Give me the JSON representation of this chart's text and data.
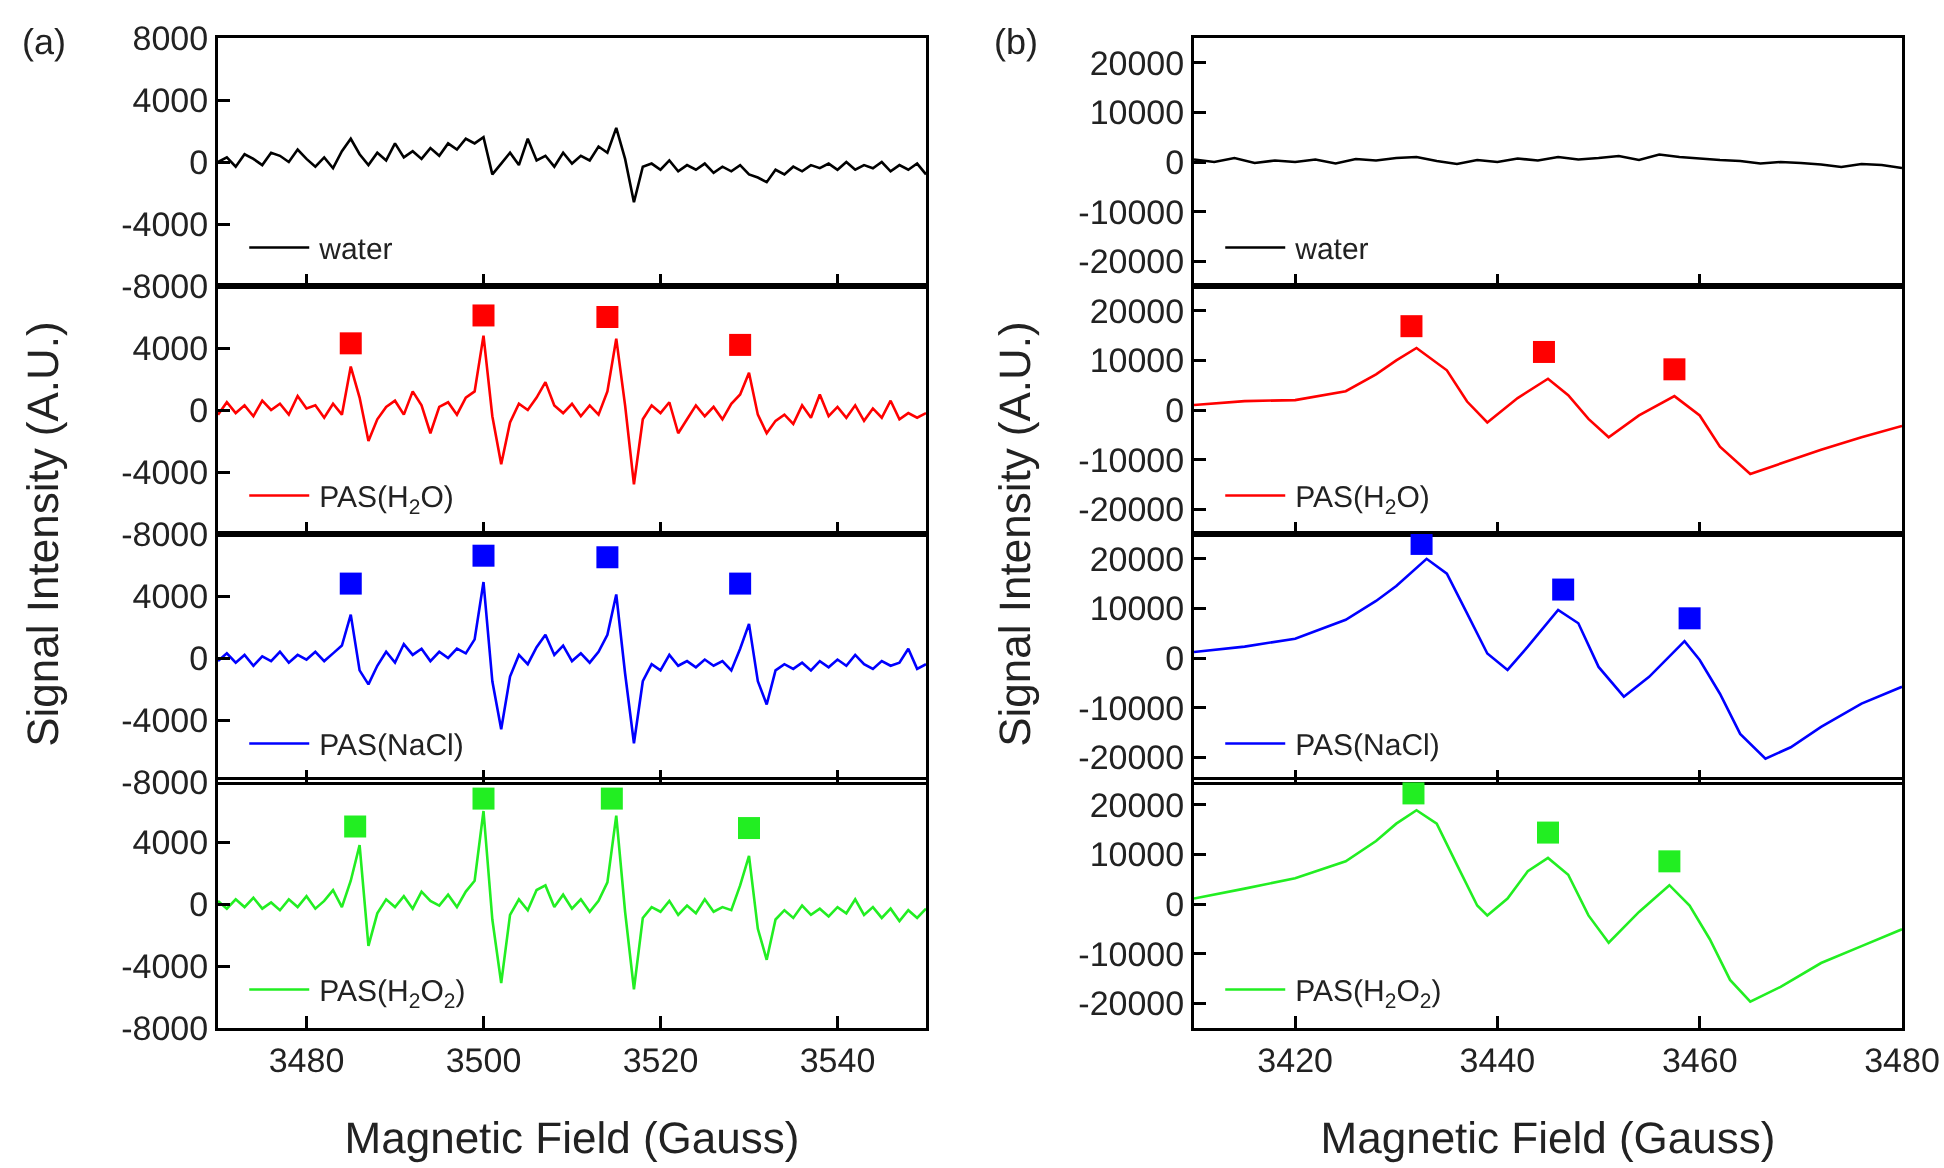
{
  "chart_data": [
    {
      "type": "line",
      "annotations": [
        "(a)"
      ],
      "ylabel": "Signal Intensity (A.U.)",
      "xlim": [
        3470,
        3550
      ],
      "xticks": [
        3480,
        3500,
        3520,
        3540
      ],
      "ylim": [
        -8000,
        8000
      ],
      "yticks": [
        8000,
        4000,
        0,
        -4000,
        -8000
      ],
      "tick_labels": "y",
      "legend": "bottom left",
      "x": [
        3470,
        3471,
        3472,
        3473,
        3474,
        3475,
        3476,
        3477,
        3478,
        3479,
        3480,
        3481,
        3482,
        3483,
        3484,
        3485,
        3486,
        3487,
        3488,
        3489,
        3490,
        3491,
        3492,
        3493,
        3494,
        3495,
        3496,
        3497,
        3498,
        3499,
        3500,
        3501,
        3502,
        3503,
        3504,
        3505,
        3506,
        3507,
        3508,
        3509,
        3510,
        3511,
        3512,
        3513,
        3514,
        3515,
        3516,
        3517,
        3518,
        3519,
        3520,
        3521,
        3522,
        3523,
        3524,
        3525,
        3526,
        3527,
        3528,
        3529,
        3530,
        3531,
        3532,
        3533,
        3534,
        3535,
        3536,
        3537,
        3538,
        3539,
        3540,
        3541,
        3542,
        3543,
        3544,
        3545,
        3546,
        3547,
        3548,
        3549,
        3550
      ],
      "series": [
        {
          "name": "water",
          "color": "#000000",
          "values": [
            0,
            300,
            -300,
            500,
            200,
            -200,
            600,
            400,
            0,
            800,
            200,
            -300,
            300,
            -400,
            700,
            1500,
            500,
            -200,
            600,
            100,
            1200,
            300,
            700,
            200,
            900,
            400,
            1200,
            800,
            1500,
            1200,
            1600,
            -800,
            -100,
            600,
            -200,
            1500,
            100,
            400,
            -300,
            600,
            -100,
            400,
            100,
            1000,
            600,
            2200,
            200,
            -2600,
            -300,
            -100,
            -500,
            100,
            -600,
            -200,
            -500,
            -100,
            -700,
            -300,
            -600,
            -200,
            -800,
            -1000,
            -1300,
            -500,
            -800,
            -300,
            -600,
            -200,
            -400,
            -100,
            -500,
            0,
            -500,
            -200,
            -400,
            0,
            -600,
            -200,
            -500,
            -100,
            -800
          ]
        }
      ]
    },
    {
      "type": "line",
      "xlim": [
        3470,
        3550
      ],
      "xticks": [
        3480,
        3500,
        3520,
        3540
      ],
      "ylim": [
        -8000,
        8000
      ],
      "yticks": [
        4000,
        0,
        -4000,
        -8000
      ],
      "tick_labels": "y",
      "legend": "bottom left",
      "x": [
        3470,
        3471,
        3472,
        3473,
        3474,
        3475,
        3476,
        3477,
        3478,
        3479,
        3480,
        3481,
        3482,
        3483,
        3484,
        3485,
        3486,
        3487,
        3488,
        3489,
        3490,
        3491,
        3492,
        3493,
        3494,
        3495,
        3496,
        3497,
        3498,
        3499,
        3500,
        3501,
        3502,
        3503,
        3504,
        3505,
        3506,
        3507,
        3508,
        3509,
        3510,
        3511,
        3512,
        3513,
        3514,
        3515,
        3516,
        3517,
        3518,
        3519,
        3520,
        3521,
        3522,
        3523,
        3524,
        3525,
        3526,
        3527,
        3528,
        3529,
        3530,
        3531,
        3532,
        3533,
        3534,
        3535,
        3536,
        3537,
        3538,
        3539,
        3540,
        3541,
        3542,
        3543,
        3544,
        3545,
        3546,
        3547,
        3548,
        3549,
        3550
      ],
      "series": [
        {
          "name": "PAS(H$_{2}$O)",
          "color": "#ff0000",
          "values": [
            -300,
            500,
            -200,
            300,
            -400,
            600,
            0,
            400,
            -300,
            900,
            100,
            300,
            -500,
            400,
            -300,
            2800,
            800,
            -2000,
            -600,
            200,
            600,
            -300,
            1200,
            300,
            -1500,
            200,
            500,
            -300,
            800,
            1200,
            4800,
            -400,
            -3500,
            -800,
            400,
            0,
            800,
            1800,
            300,
            -200,
            400,
            -400,
            300,
            -300,
            1200,
            4600,
            300,
            -4800,
            -600,
            300,
            -200,
            500,
            -1500,
            -600,
            300,
            -400,
            200,
            -600,
            400,
            1000,
            2400,
            -300,
            -1500,
            -700,
            -300,
            -900,
            300,
            -500,
            1000,
            -400,
            200,
            -500,
            300,
            -700,
            100,
            -500,
            600,
            -600,
            -200,
            -500,
            -200
          ]
        },
        {
          "type": "scatter",
          "marker": "square",
          "color": "#ff0000",
          "x": [
            3485,
            3500,
            3514,
            3529
          ],
          "values": [
            4300,
            6100,
            6000,
            4200
          ]
        }
      ]
    },
    {
      "type": "line",
      "xlim": [
        3470,
        3550
      ],
      "xticks": [
        3480,
        3500,
        3520,
        3540
      ],
      "ylim": [
        -8000,
        8000
      ],
      "yticks": [
        4000,
        0,
        -4000,
        -8000
      ],
      "tick_labels": "y",
      "legend": "bottom left",
      "x": [
        3470,
        3471,
        3472,
        3473,
        3474,
        3475,
        3476,
        3477,
        3478,
        3479,
        3480,
        3481,
        3482,
        3483,
        3484,
        3485,
        3486,
        3487,
        3488,
        3489,
        3490,
        3491,
        3492,
        3493,
        3494,
        3495,
        3496,
        3497,
        3498,
        3499,
        3500,
        3501,
        3502,
        3503,
        3504,
        3505,
        3506,
        3507,
        3508,
        3509,
        3510,
        3511,
        3512,
        3513,
        3514,
        3515,
        3516,
        3517,
        3518,
        3519,
        3520,
        3521,
        3522,
        3523,
        3524,
        3525,
        3526,
        3527,
        3528,
        3529,
        3530,
        3531,
        3532,
        3533,
        3534,
        3535,
        3536,
        3537,
        3538,
        3539,
        3540,
        3541,
        3542,
        3543,
        3544,
        3545,
        3546,
        3547,
        3548,
        3549,
        3550
      ],
      "series": [
        {
          "name": "PAS(NaCl)",
          "color": "#0000ff",
          "values": [
            -200,
            300,
            -300,
            200,
            -500,
            100,
            -200,
            400,
            -300,
            200,
            -100,
            400,
            -200,
            300,
            800,
            2800,
            -800,
            -1700,
            -500,
            400,
            -300,
            900,
            200,
            600,
            -200,
            400,
            0,
            600,
            300,
            1200,
            4900,
            -1500,
            -4600,
            -1200,
            200,
            -400,
            700,
            1500,
            200,
            800,
            -200,
            300,
            -300,
            400,
            1500,
            4100,
            -1000,
            -5500,
            -1500,
            -400,
            -800,
            200,
            -500,
            -200,
            -600,
            -100,
            -500,
            -200,
            -800,
            600,
            2200,
            -1500,
            -3000,
            -800,
            -400,
            -700,
            -300,
            -800,
            -200,
            -600,
            -100,
            -500,
            200,
            -400,
            -700,
            -200,
            -500,
            -300,
            600,
            -700,
            -400
          ]
        },
        {
          "type": "scatter",
          "marker": "square",
          "color": "#0000ff",
          "x": [
            3485,
            3500,
            3514,
            3529
          ],
          "values": [
            4800,
            6600,
            6500,
            4800
          ]
        }
      ]
    },
    {
      "type": "line",
      "xlabel": "Magnetic Field (Gauss)",
      "xlim": [
        3470,
        3550
      ],
      "xticks": [
        3480,
        3500,
        3520,
        3540
      ],
      "ylim": [
        -8000,
        8000
      ],
      "yticks": [
        4000,
        0,
        -4000,
        -8000
      ],
      "legend": "bottom left",
      "x": [
        3470,
        3471,
        3472,
        3473,
        3474,
        3475,
        3476,
        3477,
        3478,
        3479,
        3480,
        3481,
        3482,
        3483,
        3484,
        3485,
        3486,
        3487,
        3488,
        3489,
        3490,
        3491,
        3492,
        3493,
        3494,
        3495,
        3496,
        3497,
        3498,
        3499,
        3500,
        3501,
        3502,
        3503,
        3504,
        3505,
        3506,
        3507,
        3508,
        3509,
        3510,
        3511,
        3512,
        3513,
        3514,
        3515,
        3516,
        3517,
        3518,
        3519,
        3520,
        3521,
        3522,
        3523,
        3524,
        3525,
        3526,
        3527,
        3528,
        3529,
        3530,
        3531,
        3532,
        3533,
        3534,
        3535,
        3536,
        3537,
        3538,
        3539,
        3540,
        3541,
        3542,
        3543,
        3544,
        3545,
        3546,
        3547,
        3548,
        3549,
        3550
      ],
      "series": [
        {
          "name": "PAS(H$_{2}$O$_{2}$)",
          "color": "#22ee22",
          "values": [
            200,
            -300,
            300,
            -200,
            400,
            -300,
            100,
            -400,
            300,
            -200,
            500,
            -300,
            200,
            900,
            -200,
            1500,
            3800,
            -2700,
            -600,
            300,
            -200,
            500,
            -300,
            800,
            200,
            -100,
            600,
            -200,
            800,
            1500,
            6000,
            -1000,
            -5100,
            -700,
            300,
            -400,
            900,
            1200,
            -200,
            600,
            -300,
            300,
            -500,
            200,
            1400,
            5700,
            -500,
            -5500,
            -900,
            -200,
            -500,
            200,
            -700,
            -100,
            -600,
            300,
            -500,
            -200,
            -400,
            1200,
            3100,
            -1600,
            -3600,
            -1000,
            -400,
            -900,
            -100,
            -700,
            -300,
            -800,
            -200,
            -600,
            300,
            -700,
            -200,
            -900,
            -300,
            -1100,
            -400,
            -900,
            -300
          ]
        },
        {
          "type": "scatter",
          "marker": "square",
          "color": "#22ee22",
          "x": [
            3485.5,
            3500,
            3514.5,
            3530
          ],
          "values": [
            5000,
            6800,
            6800,
            4900
          ]
        }
      ]
    },
    {
      "type": "line",
      "annotations": [
        "(b)"
      ],
      "ylabel": "Signal Intensity (A.U.)",
      "xlim": [
        3410,
        3480
      ],
      "xticks": [
        3420,
        3440,
        3460,
        3480
      ],
      "ylim": [
        -25000,
        25000
      ],
      "yticks": [
        20000,
        10000,
        0,
        -10000,
        -20000
      ],
      "tick_labels": "y",
      "legend": "bottom left",
      "series": [
        {
          "name": "water",
          "color": "#000000",
          "x": [
            3410,
            3412,
            3414,
            3416,
            3418,
            3420,
            3422,
            3424,
            3426,
            3428,
            3430,
            3432,
            3434,
            3436,
            3438,
            3440,
            3442,
            3444,
            3446,
            3448,
            3450,
            3452,
            3454,
            3456,
            3458,
            3460,
            3462,
            3464,
            3466,
            3468,
            3470,
            3472,
            3474,
            3476,
            3478,
            3480
          ],
          "values": [
            500,
            0,
            800,
            -200,
            300,
            0,
            500,
            -300,
            600,
            300,
            800,
            1000,
            200,
            -400,
            400,
            0,
            700,
            300,
            1000,
            500,
            800,
            1200,
            400,
            1500,
            1000,
            700,
            400,
            200,
            -300,
            0,
            -200,
            -500,
            -1000,
            -400,
            -600,
            -1200
          ]
        }
      ]
    },
    {
      "type": "line",
      "xlim": [
        3410,
        3480
      ],
      "xticks": [
        3420,
        3440,
        3460,
        3480
      ],
      "ylim": [
        -25000,
        25000
      ],
      "yticks": [
        20000,
        10000,
        0,
        -10000,
        -20000
      ],
      "tick_labels": "y",
      "legend": "bottom left",
      "series": [
        {
          "name": "PAS(H$_{2}$O)",
          "color": "#ff0000",
          "x": [
            3410,
            3415,
            3420,
            3425,
            3428,
            3430,
            3432,
            3435,
            3437,
            3439,
            3442,
            3445,
            3447,
            3449,
            3451,
            3454,
            3457.5,
            3460,
            3462,
            3465,
            3468,
            3472,
            3476,
            3480
          ],
          "values": [
            1000,
            1800,
            2000,
            3800,
            7200,
            10000,
            12500,
            8000,
            1700,
            -2500,
            2400,
            6300,
            3000,
            -1800,
            -5500,
            -1100,
            2800,
            -1100,
            -7400,
            -12900,
            -10800,
            -8000,
            -5500,
            -3200
          ]
        },
        {
          "type": "scatter",
          "marker": "square",
          "color": "#ff0000",
          "x": [
            3431.5,
            3444.6,
            3457.5
          ],
          "values": [
            16900,
            11700,
            8200
          ]
        }
      ]
    },
    {
      "type": "line",
      "xlim": [
        3410,
        3480
      ],
      "xticks": [
        3420,
        3440,
        3460,
        3480
      ],
      "ylim": [
        -25000,
        25000
      ],
      "yticks": [
        20000,
        10000,
        0,
        -10000,
        -20000
      ],
      "tick_labels": "y",
      "legend": "bottom left",
      "series": [
        {
          "name": "PAS(NaCl)",
          "color": "#0000ff",
          "x": [
            3410,
            3415,
            3420,
            3425,
            3428,
            3430,
            3433,
            3435,
            3437,
            3439,
            3441,
            3443,
            3446,
            3448,
            3450,
            3452.5,
            3455,
            3458.5,
            3460,
            3462,
            3464,
            3466.5,
            3469,
            3472,
            3476,
            3480
          ],
          "values": [
            1200,
            2300,
            3900,
            7700,
            11500,
            14500,
            20000,
            17000,
            9000,
            900,
            -2400,
            2300,
            9700,
            7000,
            -1800,
            -7800,
            -3800,
            3400,
            -400,
            -7200,
            -15300,
            -20300,
            -18000,
            -13900,
            -9200,
            -5800
          ]
        },
        {
          "type": "scatter",
          "marker": "square",
          "color": "#0000ff",
          "x": [
            3432.5,
            3446.5,
            3459
          ],
          "values": [
            23000,
            13800,
            8000
          ]
        }
      ]
    },
    {
      "type": "line",
      "xlabel": "Magnetic Field (Gauss)",
      "xlim": [
        3410,
        3480
      ],
      "xticks": [
        3420,
        3440,
        3460,
        3480
      ],
      "ylim": [
        -25000,
        25000
      ],
      "yticks": [
        20000,
        10000,
        0,
        -10000,
        -20000
      ],
      "legend": "bottom left",
      "series": [
        {
          "name": "PAS(H$_{2}$O$_{2}$)",
          "color": "#22ee22",
          "x": [
            3410,
            3415,
            3420,
            3425,
            3428,
            3430,
            3432,
            3434,
            3436,
            3438,
            3439,
            3441,
            3443,
            3445,
            3447,
            3449,
            3451,
            3454,
            3457,
            3459,
            3461,
            3463,
            3465,
            3468,
            3472,
            3476,
            3480
          ],
          "values": [
            1100,
            3100,
            5200,
            8600,
            12700,
            16200,
            18900,
            16200,
            7900,
            -300,
            -2300,
            1100,
            6600,
            9300,
            5900,
            -2300,
            -7800,
            -1600,
            3800,
            -300,
            -7100,
            -15300,
            -19700,
            -16700,
            -11900,
            -8500,
            -5100
          ]
        },
        {
          "type": "scatter",
          "marker": "square",
          "color": "#22ee22",
          "x": [
            3431.7,
            3445,
            3457
          ],
          "values": [
            22300,
            14400,
            8600
          ]
        }
      ]
    }
  ]
}
